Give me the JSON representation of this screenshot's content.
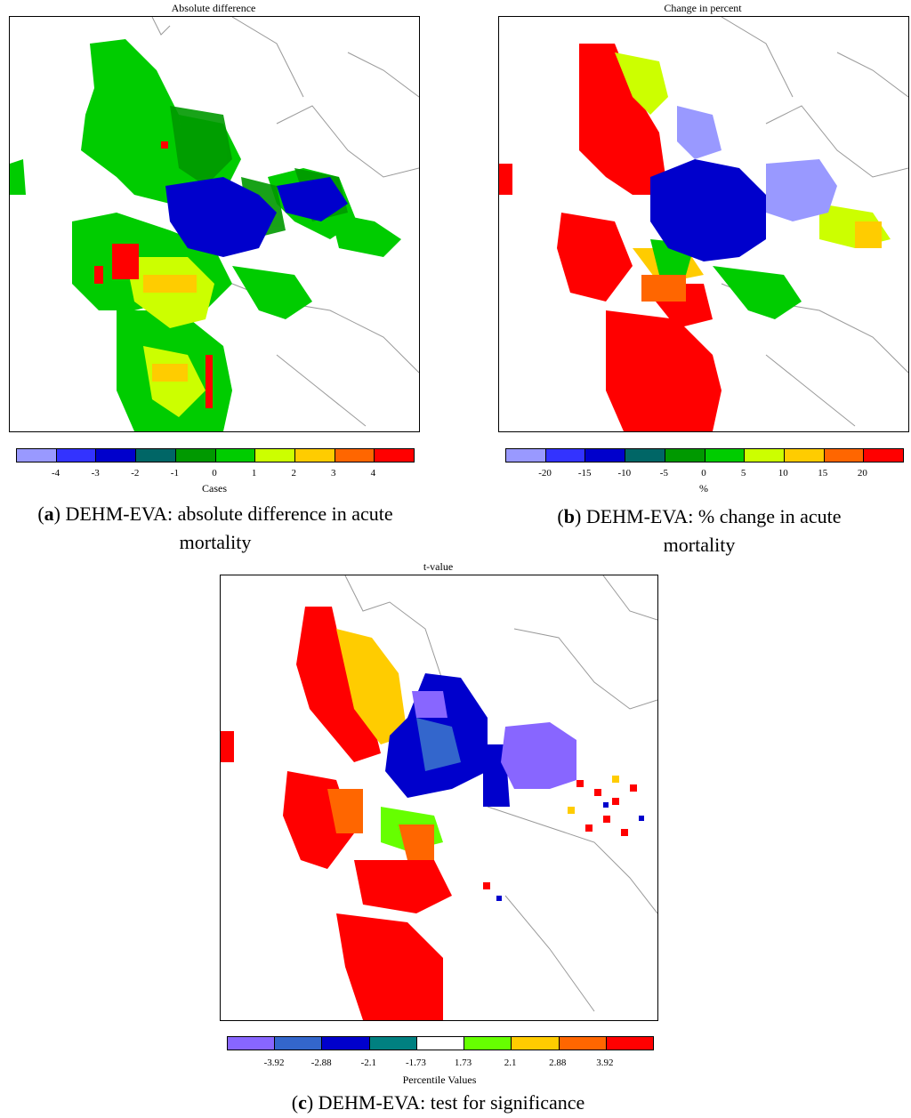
{
  "panels": {
    "a": {
      "title": "Absolute difference",
      "colorbar_colors": [
        "#9999ff",
        "#3333ff",
        "#0000cc",
        "#006666",
        "#009900",
        "#00cc00",
        "#ccff00",
        "#ffcc00",
        "#ff6600",
        "#ff0000"
      ],
      "tick_labels": [
        "-4",
        "-3",
        "-2",
        "-1",
        "0",
        "1",
        "2",
        "3",
        "4"
      ],
      "colorbar_title": "Cases",
      "caption_letter": "a",
      "caption_line1": ") DEHM-EVA: absolute difference in acute",
      "caption_line2": "mortality"
    },
    "b": {
      "title": "Change in percent",
      "colorbar_colors": [
        "#9999ff",
        "#3333ff",
        "#0000cc",
        "#006666",
        "#009900",
        "#00cc00",
        "#ccff00",
        "#ffcc00",
        "#ff6600",
        "#ff0000"
      ],
      "tick_labels": [
        "-20",
        "-15",
        "-10",
        "-5",
        "0",
        "5",
        "10",
        "15",
        "20"
      ],
      "colorbar_title": "%",
      "caption_letter": "b",
      "caption_line1": ") DEHM-EVA: % change in acute",
      "caption_line2": "mortality"
    },
    "c": {
      "title": "t-value",
      "colorbar_colors": [
        "#8866ff",
        "#3366cc",
        "#0000cc",
        "#008080",
        "#ffffff",
        "#66ff00",
        "#ffcc00",
        "#ff6600",
        "#ff0000"
      ],
      "tick_labels": [
        "-3.92",
        "-2.88",
        "-2.1",
        "-1.73",
        "1.73",
        "2.1",
        "2.88",
        "3.92"
      ],
      "colorbar_title": "Percentile Values",
      "caption_letter": "c",
      "caption_line1": ") DEHM-EVA: test for significance"
    }
  }
}
